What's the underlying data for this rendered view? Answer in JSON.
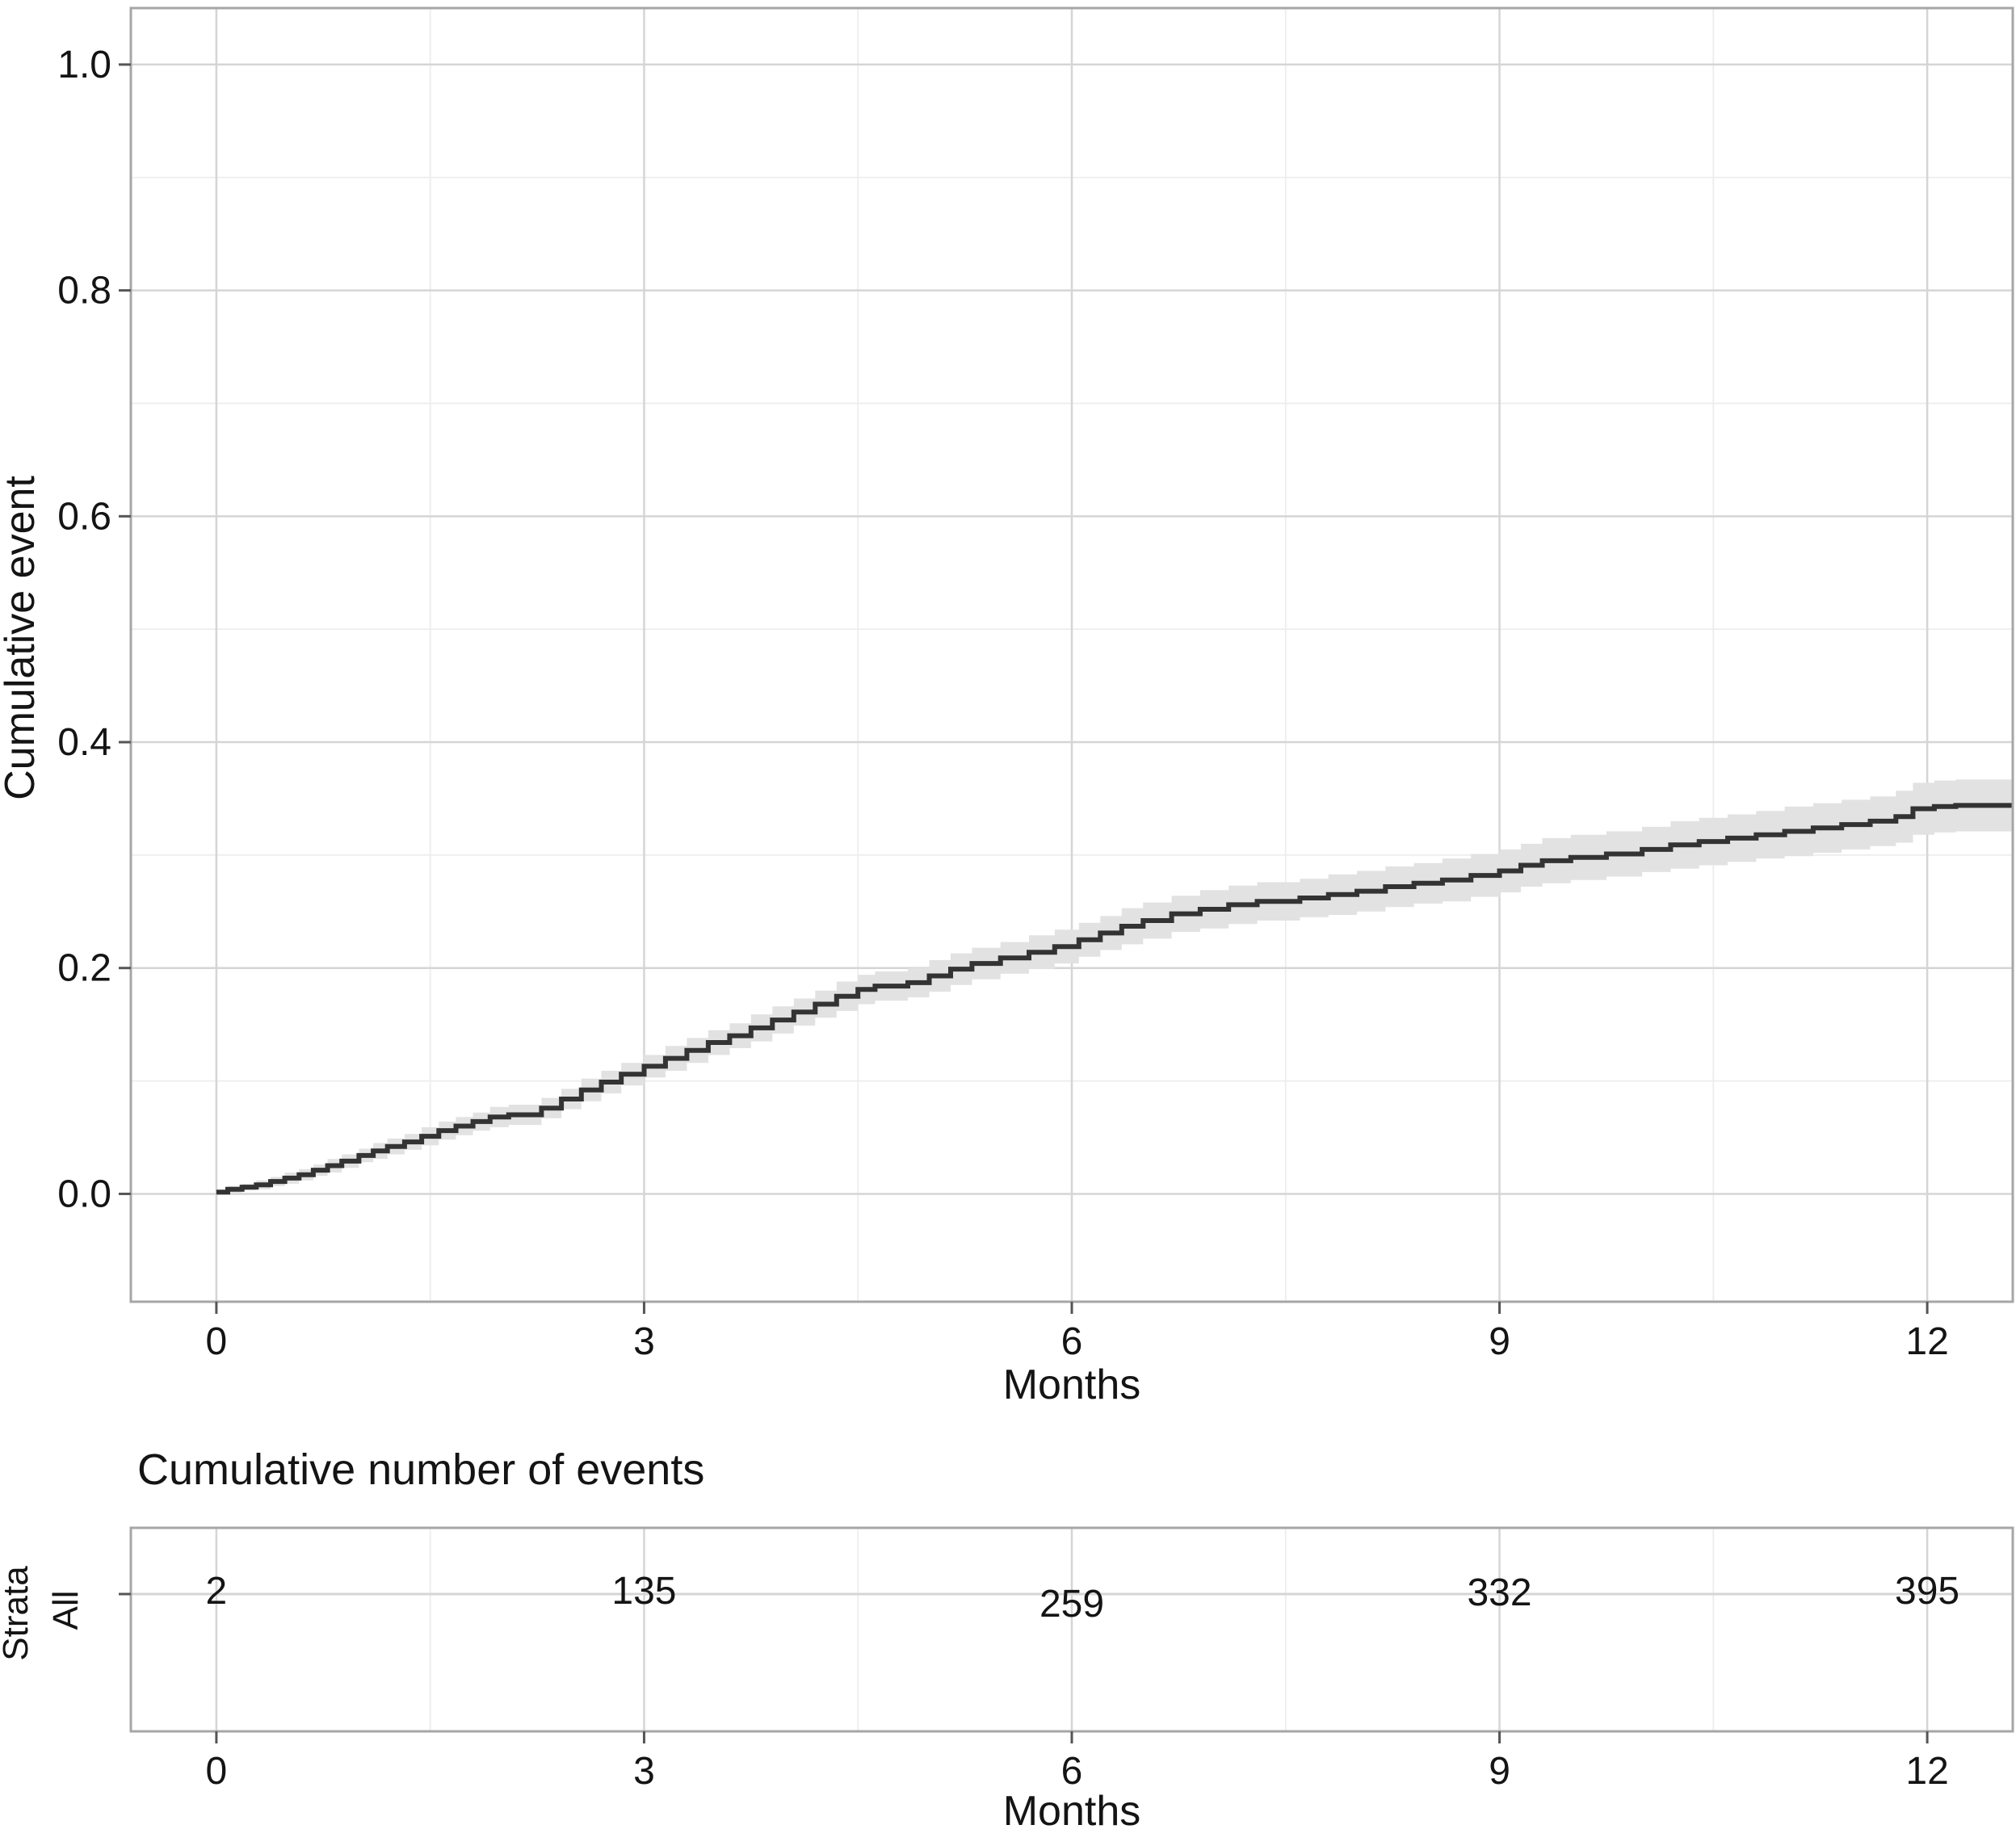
{
  "figure": {
    "background": "#ffffff"
  },
  "colors": {
    "curve": "#333333",
    "confidence_band": "#e2e2e2",
    "grid_major": "#d5d5d5",
    "grid_minor": "#ededed",
    "panel_border": "#a6a6a6",
    "tick_mark": "#555555",
    "text": "#141414"
  },
  "chart_data": [
    {
      "type": "line",
      "subtype": "step-cumulative-incidence-with-ci",
      "title": "",
      "xlabel": "Months",
      "ylabel": "Cumulative event",
      "xlim": [
        -0.6,
        12.6
      ],
      "ylim": [
        -0.0955,
        1.05
      ],
      "x_ticks": [
        0,
        3,
        6,
        9,
        12
      ],
      "x_tick_labels": [
        "0",
        "3",
        "6",
        "9",
        "12"
      ],
      "x_minor_ticks": [
        1.5,
        4.5,
        7.5,
        10.5
      ],
      "y_ticks": [
        0.0,
        0.2,
        0.4,
        0.6,
        0.8,
        1.0
      ],
      "y_tick_labels": [
        "0.0",
        "0.2",
        "0.4",
        "0.6",
        "0.8",
        "1.0"
      ],
      "y_minor_ticks": [
        0.1,
        0.3,
        0.5,
        0.7,
        0.9
      ],
      "grid": "major+minor",
      "legend": "none",
      "series": [
        {
          "name": "All",
          "step": true,
          "points_format": [
            "month",
            "cumulative_event",
            "ci_halfwidth"
          ],
          "points": [
            [
              0.0,
              0.0015,
              0.002
            ],
            [
              0.08,
              0.004,
              0.003
            ],
            [
              0.18,
              0.006,
              0.003
            ],
            [
              0.28,
              0.008,
              0.004
            ],
            [
              0.38,
              0.011,
              0.004
            ],
            [
              0.48,
              0.014,
              0.005
            ],
            [
              0.58,
              0.017,
              0.005
            ],
            [
              0.68,
              0.021,
              0.005
            ],
            [
              0.78,
              0.025,
              0.006
            ],
            [
              0.88,
              0.029,
              0.006
            ],
            [
              1.0,
              0.034,
              0.006
            ],
            [
              1.1,
              0.038,
              0.007
            ],
            [
              1.2,
              0.042,
              0.007
            ],
            [
              1.32,
              0.046,
              0.007
            ],
            [
              1.44,
              0.051,
              0.008
            ],
            [
              1.56,
              0.056,
              0.008
            ],
            [
              1.68,
              0.06,
              0.008
            ],
            [
              1.8,
              0.064,
              0.008
            ],
            [
              1.92,
              0.068,
              0.009
            ],
            [
              2.05,
              0.07,
              0.009
            ],
            [
              2.28,
              0.076,
              0.009
            ],
            [
              2.42,
              0.084,
              0.009
            ],
            [
              2.56,
              0.092,
              0.01
            ],
            [
              2.7,
              0.099,
              0.01
            ],
            [
              2.84,
              0.106,
              0.01
            ],
            [
              3.0,
              0.113,
              0.01
            ],
            [
              3.15,
              0.12,
              0.011
            ],
            [
              3.3,
              0.127,
              0.011
            ],
            [
              3.45,
              0.134,
              0.011
            ],
            [
              3.6,
              0.14,
              0.011
            ],
            [
              3.75,
              0.147,
              0.012
            ],
            [
              3.9,
              0.154,
              0.012
            ],
            [
              4.05,
              0.161,
              0.012
            ],
            [
              4.2,
              0.168,
              0.012
            ],
            [
              4.35,
              0.175,
              0.013
            ],
            [
              4.5,
              0.181,
              0.013
            ],
            [
              4.62,
              0.184,
              0.013
            ],
            [
              4.85,
              0.187,
              0.013
            ],
            [
              5.0,
              0.193,
              0.014
            ],
            [
              5.15,
              0.199,
              0.014
            ],
            [
              5.3,
              0.204,
              0.014
            ],
            [
              5.5,
              0.209,
              0.014
            ],
            [
              5.7,
              0.214,
              0.015
            ],
            [
              5.88,
              0.219,
              0.015
            ],
            [
              6.05,
              0.225,
              0.015
            ],
            [
              6.2,
              0.231,
              0.015
            ],
            [
              6.35,
              0.237,
              0.016
            ],
            [
              6.5,
              0.242,
              0.016
            ],
            [
              6.7,
              0.248,
              0.016
            ],
            [
              6.9,
              0.252,
              0.017
            ],
            [
              7.1,
              0.256,
              0.017
            ],
            [
              7.3,
              0.259,
              0.017
            ],
            [
              7.6,
              0.262,
              0.017
            ],
            [
              7.8,
              0.265,
              0.018
            ],
            [
              8.0,
              0.268,
              0.018
            ],
            [
              8.2,
              0.272,
              0.018
            ],
            [
              8.4,
              0.275,
              0.018
            ],
            [
              8.6,
              0.278,
              0.019
            ],
            [
              8.8,
              0.282,
              0.019
            ],
            [
              9.0,
              0.286,
              0.019
            ],
            [
              9.15,
              0.291,
              0.019
            ],
            [
              9.3,
              0.295,
              0.02
            ],
            [
              9.5,
              0.298,
              0.02
            ],
            [
              9.75,
              0.301,
              0.02
            ],
            [
              10.0,
              0.305,
              0.02
            ],
            [
              10.2,
              0.309,
              0.021
            ],
            [
              10.4,
              0.312,
              0.021
            ],
            [
              10.6,
              0.315,
              0.021
            ],
            [
              10.8,
              0.318,
              0.021
            ],
            [
              11.0,
              0.321,
              0.022
            ],
            [
              11.2,
              0.324,
              0.022
            ],
            [
              11.4,
              0.327,
              0.022
            ],
            [
              11.6,
              0.33,
              0.022
            ],
            [
              11.78,
              0.334,
              0.023
            ],
            [
              11.9,
              0.341,
              0.023
            ],
            [
              12.05,
              0.343,
              0.023
            ],
            [
              12.2,
              0.344,
              0.023
            ]
          ]
        }
      ]
    },
    {
      "type": "table",
      "title": "Cumulative number of events",
      "xlabel": "Months",
      "strata_axis_label": "Strata",
      "xlim": [
        -0.6,
        12.6
      ],
      "x_ticks": [
        0,
        3,
        6,
        9,
        12
      ],
      "x_tick_labels": [
        "0",
        "3",
        "6",
        "9",
        "12"
      ],
      "x_minor_ticks": [
        1.5,
        4.5,
        7.5,
        10.5
      ],
      "rows": [
        {
          "label": "All",
          "months": [
            0,
            3,
            6,
            9,
            12
          ],
          "values": [
            "2",
            "135",
            "259",
            "332",
            "395"
          ]
        }
      ]
    }
  ]
}
